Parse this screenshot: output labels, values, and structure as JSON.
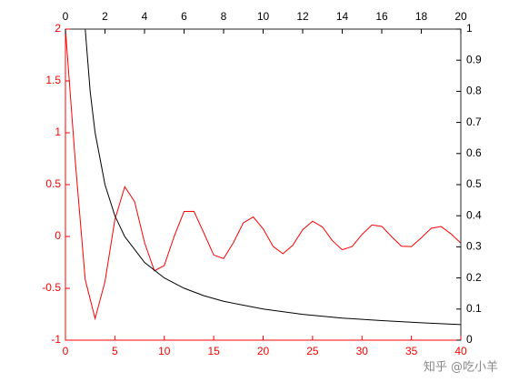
{
  "chart_data": {
    "type": "line",
    "xlim": [
      0,
      40
    ],
    "xticks": [
      0,
      5,
      10,
      15,
      20,
      25,
      30,
      35,
      40
    ],
    "ylim": [
      -1,
      2
    ],
    "yticks": [
      -1,
      -0.5,
      0,
      0.5,
      1,
      1.5,
      2
    ],
    "x2lim": [
      0,
      20
    ],
    "x2ticks": [
      0,
      2,
      4,
      6,
      8,
      10,
      12,
      14,
      16,
      18,
      20
    ],
    "y2lim": [
      0,
      1
    ],
    "y2ticks": [
      0,
      0.1,
      0.2,
      0.3,
      0.4,
      0.5,
      0.6,
      0.7,
      0.8,
      0.9,
      1
    ],
    "primary_color": "#ff0000",
    "secondary_color": "#000000",
    "series": [
      {
        "color": "#ff0000",
        "x": [
          0,
          1,
          2,
          3,
          4,
          5,
          6,
          7,
          8,
          9,
          10,
          11,
          12,
          13,
          14,
          15,
          16,
          17,
          18,
          19,
          20,
          21,
          22,
          23,
          24,
          25,
          26,
          27,
          28,
          29,
          30,
          31,
          32,
          33,
          34,
          35,
          36,
          37,
          38,
          39,
          40
        ],
        "values": [
          2,
          0.72,
          -0.416,
          -0.792,
          -0.436,
          0.162,
          0.48,
          0.335,
          -0.058,
          -0.331,
          -0.28,
          0.001,
          0.241,
          0.242,
          0.034,
          -0.179,
          -0.213,
          -0.058,
          0.132,
          0.188,
          0.074,
          -0.095,
          -0.167,
          -0.085,
          0.065,
          0.147,
          0.092,
          -0.04,
          -0.128,
          -0.097,
          0.019,
          0.111,
          0.098,
          -0.002,
          -0.094,
          -0.098,
          -0.013,
          0.079,
          0.096,
          0.026,
          -0.064
        ]
      },
      {
        "color": "#000000",
        "axis": "y2",
        "xaxis": "x2",
        "x": [
          1,
          1.25,
          1.5,
          2,
          2.5,
          3,
          4,
          5,
          6,
          7,
          8,
          10,
          12,
          14,
          16,
          18,
          20
        ],
        "values": [
          1,
          0.8,
          0.667,
          0.5,
          0.4,
          0.333,
          0.25,
          0.2,
          0.167,
          0.143,
          0.125,
          0.1,
          0.083,
          0.071,
          0.063,
          0.056,
          0.05
        ]
      }
    ],
    "watermark": "知乎 @吃小羊"
  }
}
